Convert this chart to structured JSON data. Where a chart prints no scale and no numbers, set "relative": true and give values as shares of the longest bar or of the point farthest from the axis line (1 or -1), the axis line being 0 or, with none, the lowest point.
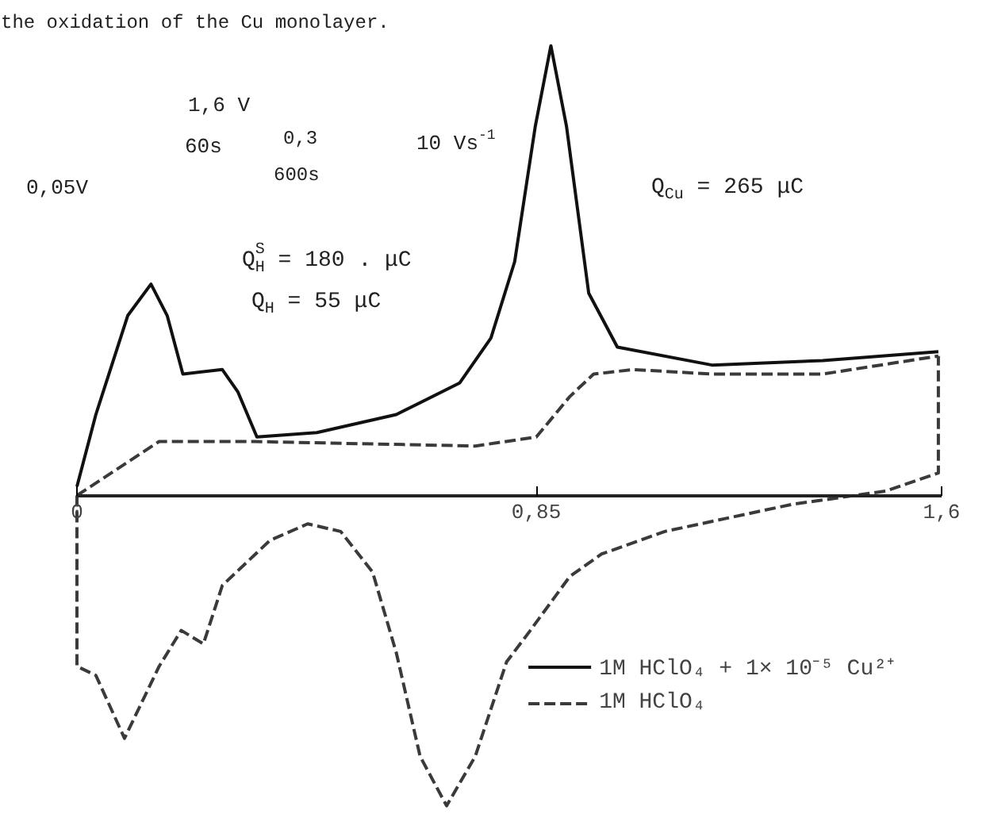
{
  "chart_data": {
    "type": "line",
    "relative": true,
    "annotations": [
      "the oxidation of the Cu monolayer.",
      "1,6 V",
      "60s",
      "0,3",
      "600s",
      "0,05V",
      "10 Vs$^{-1}$",
      "Q$_{Cu}$ = 265 μC",
      "Q$^{S}$$_{H}$ = 180 . μC",
      "Q$_{H}$ = 55 μC"
    ],
    "xticks": [
      {
        "value": 0,
        "label": "0"
      },
      {
        "value": 0.85,
        "label": "0,85"
      },
      {
        "value": 1.6,
        "label": "1,6"
      }
    ],
    "xlim": [
      0,
      1.6
    ],
    "legend": "bottom right",
    "grid": false,
    "series": [
      {
        "name": "1M HClO₄ + 1× 10⁻⁵ Cu²⁺",
        "color": "#111111",
        "line_style": "solid",
        "x": [
          0,
          0.035,
          0.094,
          0.137,
          0.167,
          0.196,
          0.269,
          0.298,
          0.333,
          0.444,
          0.591,
          0.708,
          0.766,
          0.81,
          0.848,
          0.877,
          0.906,
          0.947,
          1.0,
          1.175,
          1.38,
          1.594
        ],
        "values": [
          0.02,
          0.18,
          0.4,
          0.47,
          0.4,
          0.27,
          0.28,
          0.23,
          0.13,
          0.14,
          0.18,
          0.25,
          0.35,
          0.52,
          0.82,
          1.0,
          0.82,
          0.45,
          0.33,
          0.29,
          0.3,
          0.32
        ]
      },
      {
        "name": "1M HClO₄",
        "color": "#3a3a3a",
        "line_style": "dashed",
        "x": [
          0,
          0.152,
          0.327,
          0.737,
          0.85,
          0.912,
          0.956,
          1.03,
          1.175,
          1.38,
          1.594
        ],
        "values": [
          0.0,
          0.12,
          0.12,
          0.11,
          0.13,
          0.22,
          0.27,
          0.28,
          0.27,
          0.27,
          0.31
        ]
      },
      {
        "color": "#3a3a3a",
        "line_style": "dashed",
        "x": [
          0,
          0,
          0.035,
          0.088,
          0.152,
          0.193,
          0.234,
          0.269,
          0.357,
          0.427,
          0.488,
          0.547,
          0.591,
          0.635,
          0.684,
          0.737,
          0.795,
          0.839,
          0.912,
          0.971,
          1.088,
          1.322,
          1.497,
          1.594,
          1.594
        ],
        "values": [
          0.0,
          -0.38,
          -0.4,
          -0.54,
          -0.38,
          -0.3,
          -0.33,
          -0.2,
          -0.1,
          -0.063,
          -0.08,
          -0.17,
          -0.35,
          -0.58,
          -0.69,
          -0.58,
          -0.37,
          -0.3,
          -0.18,
          -0.13,
          -0.08,
          -0.02,
          0.01,
          0.05,
          0.31
        ]
      }
    ]
  }
}
